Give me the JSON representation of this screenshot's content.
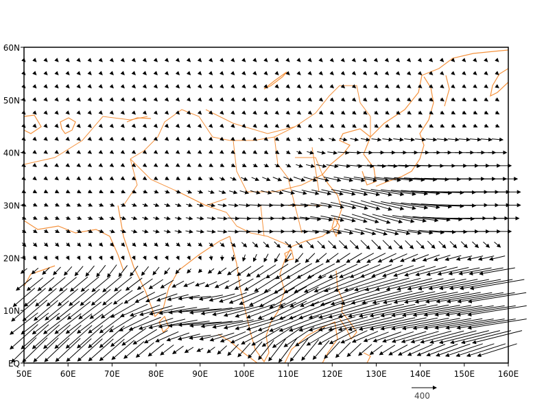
{
  "chart_data": {
    "type": "vector-field",
    "projection": "lat-lon",
    "xlim": [
      50,
      160
    ],
    "ylim": [
      0,
      60
    ],
    "x_ticks": [
      "50E",
      "60E",
      "70E",
      "80E",
      "90E",
      "100E",
      "110E",
      "120E",
      "130E",
      "140E",
      "150E",
      "160E"
    ],
    "y_ticks": [
      "EQ",
      "10N",
      "20N",
      "30N",
      "40N",
      "50N",
      "60N"
    ],
    "grid": false,
    "coastline_color": "#f5913b",
    "vector_color": "#000000",
    "reference_vector": {
      "label": "400",
      "magnitude": 400
    },
    "grid_spacing_deg": 2.5,
    "anchor_lons": [
      50,
      70,
      90,
      110,
      130,
      150,
      160
    ],
    "rows": [
      {
        "lat": 57.5,
        "u": [
          40,
          40,
          40,
          40,
          40,
          40,
          40
        ],
        "v": [
          -40,
          -40,
          -40,
          -40,
          -40,
          -40,
          -40
        ]
      },
      {
        "lat": 45,
        "u": [
          40,
          40,
          40,
          50,
          60,
          60,
          60
        ],
        "v": [
          -40,
          -40,
          -40,
          -40,
          -40,
          -30,
          -30
        ]
      },
      {
        "lat": 40,
        "u": [
          40,
          40,
          40,
          60,
          250,
          300,
          300
        ],
        "v": [
          -30,
          -30,
          -30,
          -40,
          0,
          0,
          0
        ]
      },
      {
        "lat": 37.5,
        "u": [
          40,
          40,
          50,
          80,
          300,
          450,
          450
        ],
        "v": [
          -30,
          -30,
          -30,
          -40,
          -20,
          0,
          0
        ]
      },
      {
        "lat": 35,
        "u": [
          40,
          40,
          60,
          150,
          400,
          650,
          650
        ],
        "v": [
          -30,
          -30,
          -30,
          -60,
          -60,
          0,
          0
        ]
      },
      {
        "lat": 32.5,
        "u": [
          50,
          60,
          80,
          200,
          500,
          750,
          750
        ],
        "v": [
          -30,
          -30,
          -30,
          -50,
          -100,
          0,
          0
        ]
      },
      {
        "lat": 30,
        "u": [
          60,
          70,
          100,
          250,
          500,
          750,
          750
        ],
        "v": [
          -30,
          -30,
          -30,
          0,
          -150,
          0,
          0
        ]
      },
      {
        "lat": 27.5,
        "u": [
          60,
          80,
          110,
          300,
          450,
          700,
          700
        ],
        "v": [
          -30,
          -30,
          -20,
          0,
          -150,
          0,
          0
        ]
      },
      {
        "lat": 25,
        "u": [
          60,
          80,
          120,
          250,
          350,
          450,
          450
        ],
        "v": [
          -40,
          -30,
          -20,
          0,
          -100,
          0,
          0
        ]
      },
      {
        "lat": 22.5,
        "u": [
          60,
          50,
          60,
          100,
          150,
          100,
          100
        ],
        "v": [
          -60,
          -50,
          -50,
          -100,
          -150,
          -100,
          -80
        ]
      },
      {
        "lat": 20,
        "u": [
          40,
          30,
          30,
          -100,
          -300,
          -250,
          -250
        ],
        "v": [
          -60,
          -60,
          -60,
          -150,
          -150,
          -60,
          -60
        ]
      },
      {
        "lat": 17.5,
        "u": [
          -100,
          -150,
          -50,
          -400,
          -500,
          -500,
          -600
        ],
        "v": [
          -80,
          -200,
          -50,
          -250,
          -200,
          -100,
          -100
        ]
      },
      {
        "lat": 15,
        "u": [
          -250,
          -300,
          -150,
          -450,
          -700,
          -800,
          -900
        ],
        "v": [
          -200,
          -250,
          -50,
          -300,
          -200,
          -150,
          -150
        ]
      },
      {
        "lat": 12.5,
        "u": [
          -350,
          -300,
          -350,
          -600,
          -800,
          -900,
          -950
        ],
        "v": [
          -300,
          -250,
          -30,
          -350,
          -200,
          -150,
          -150
        ]
      },
      {
        "lat": 10,
        "u": [
          -400,
          -350,
          -700,
          -600,
          -900,
          -950,
          -950
        ],
        "v": [
          -350,
          -250,
          -50,
          -300,
          -200,
          -150,
          -150
        ]
      },
      {
        "lat": 7.5,
        "u": [
          -450,
          -400,
          -700,
          -600,
          -900,
          -950,
          -950
        ],
        "v": [
          -350,
          -300,
          -50,
          -250,
          -200,
          -150,
          -150
        ]
      },
      {
        "lat": 5,
        "u": [
          -450,
          -400,
          -350,
          -500,
          -400,
          -800,
          -800
        ],
        "v": [
          -400,
          -350,
          -50,
          -350,
          -150,
          -200,
          -200
        ]
      },
      {
        "lat": 2.5,
        "u": [
          -400,
          -400,
          -100,
          -300,
          -200,
          -600,
          -650
        ],
        "v": [
          -400,
          -350,
          -50,
          -400,
          -150,
          -200,
          -200
        ]
      }
    ]
  }
}
